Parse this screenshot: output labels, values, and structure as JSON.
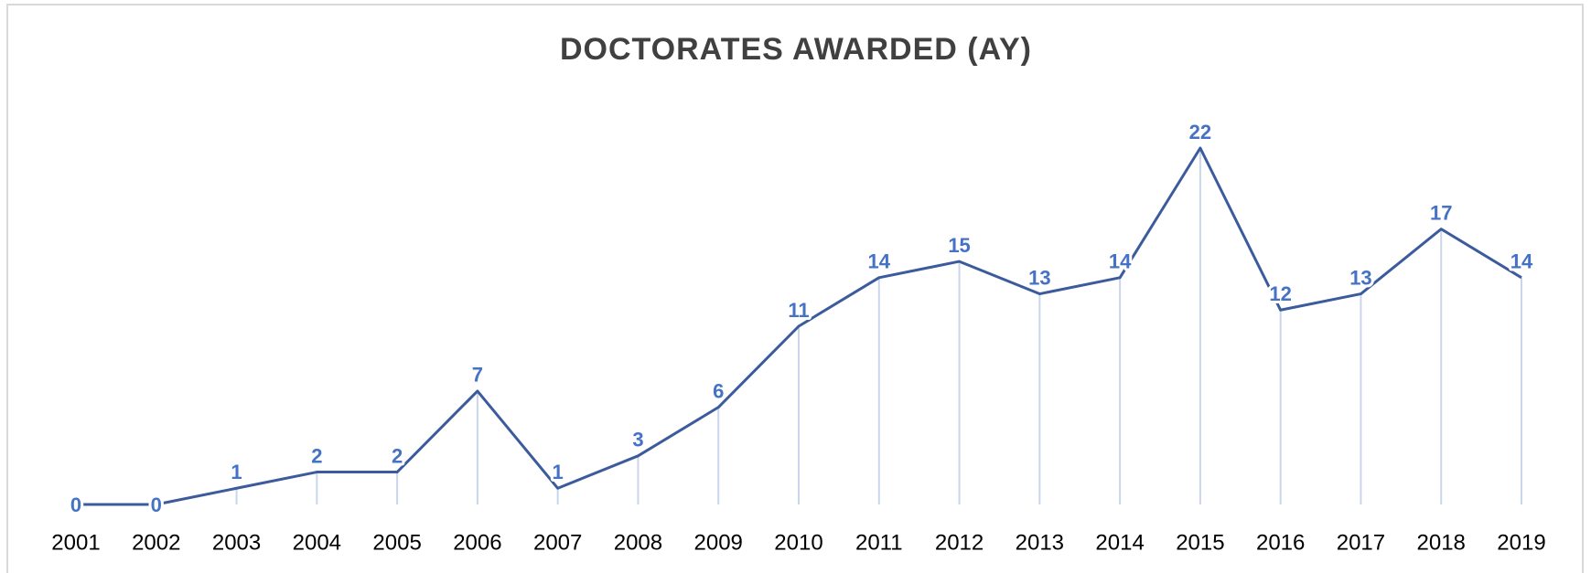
{
  "chart_data": {
    "type": "line",
    "title": "DOCTORATES AWARDED (AY)",
    "categories": [
      "2001",
      "2002",
      "2003",
      "2004",
      "2005",
      "2006",
      "2007",
      "2008",
      "2009",
      "2010",
      "2011",
      "2012",
      "2013",
      "2014",
      "2015",
      "2016",
      "2017",
      "2018",
      "2019"
    ],
    "values": [
      0,
      0,
      1,
      2,
      2,
      7,
      1,
      3,
      6,
      11,
      14,
      15,
      13,
      14,
      22,
      12,
      13,
      17,
      14
    ],
    "color": "#3b5b9c",
    "label_color": "#4472c4",
    "drop_line_color": "#c9d6ec"
  }
}
